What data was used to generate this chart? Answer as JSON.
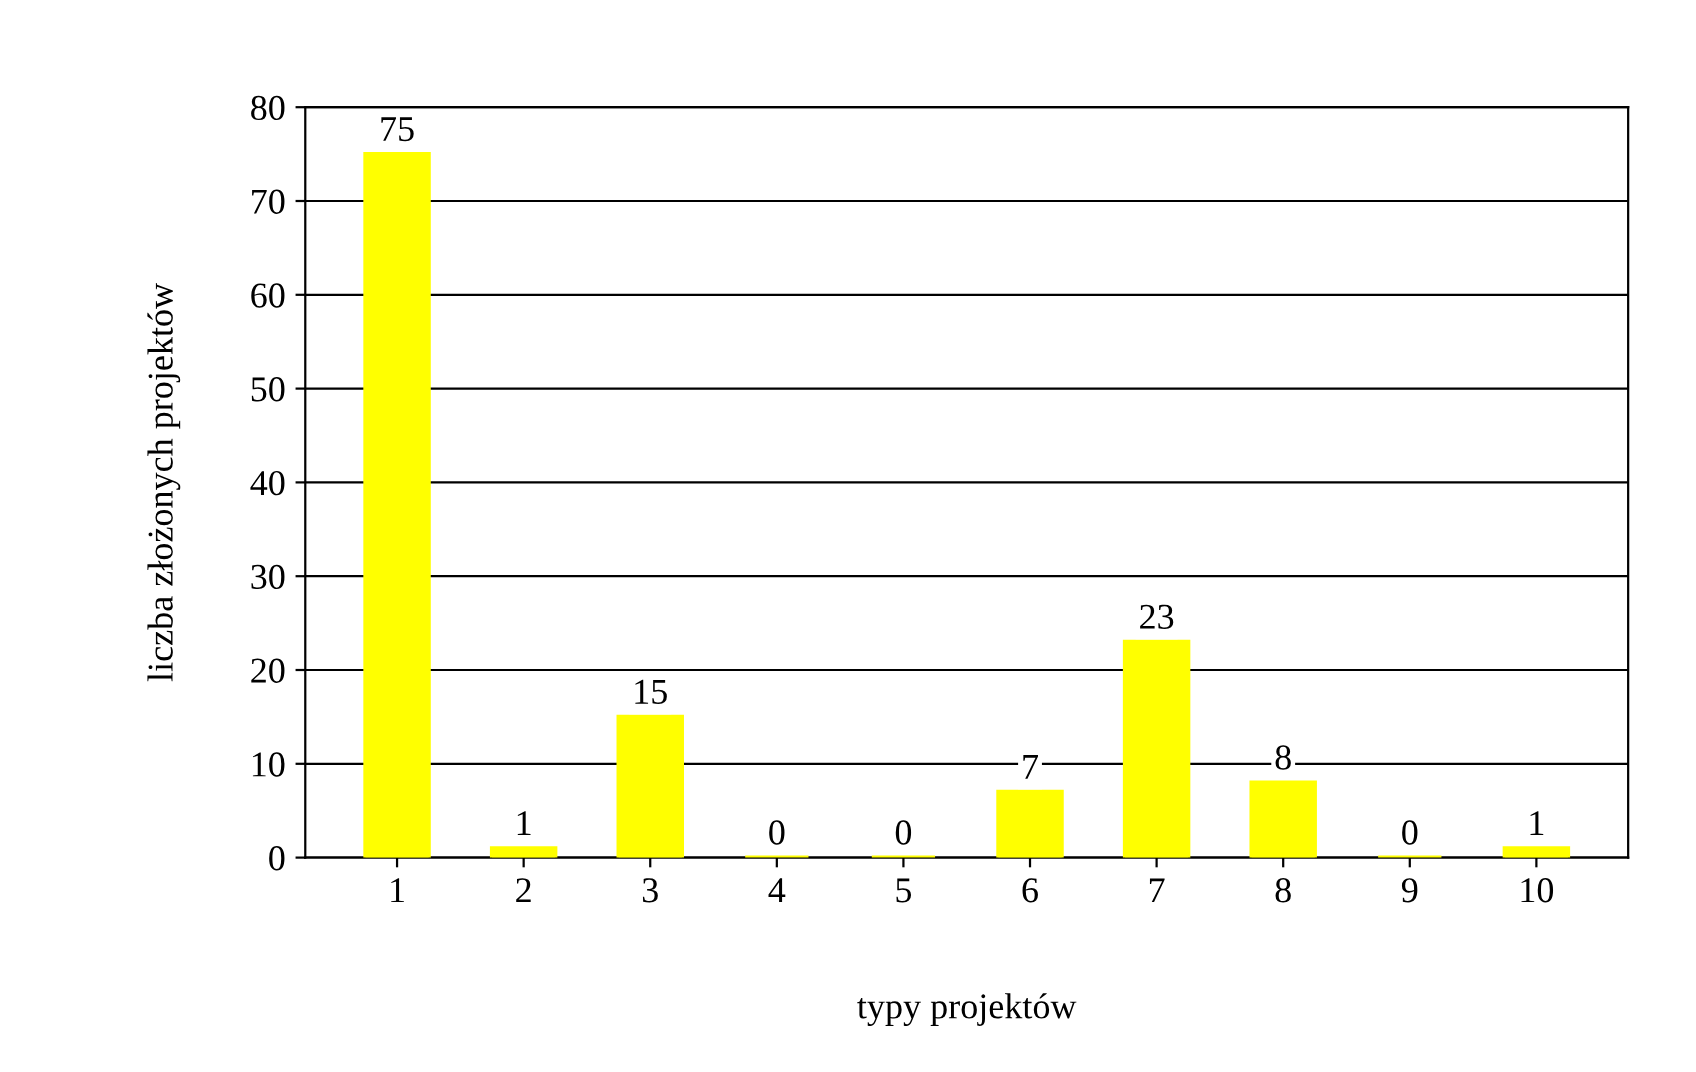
{
  "chart_data": {
    "type": "bar",
    "xlabel": "typy projektów",
    "ylabel": "liczba złożonych projektów",
    "categories": [
      "1",
      "2",
      "3",
      "4",
      "5",
      "6",
      "7",
      "8",
      "9",
      "10"
    ],
    "values": [
      75,
      1,
      15,
      0,
      0,
      7,
      23,
      8,
      0,
      1
    ],
    "color": "#ffff00",
    "ylim": [
      0,
      80
    ],
    "yticks": [
      0,
      10,
      20,
      30,
      40,
      50,
      60,
      70,
      80
    ],
    "grid": "y",
    "data_labels": true
  }
}
